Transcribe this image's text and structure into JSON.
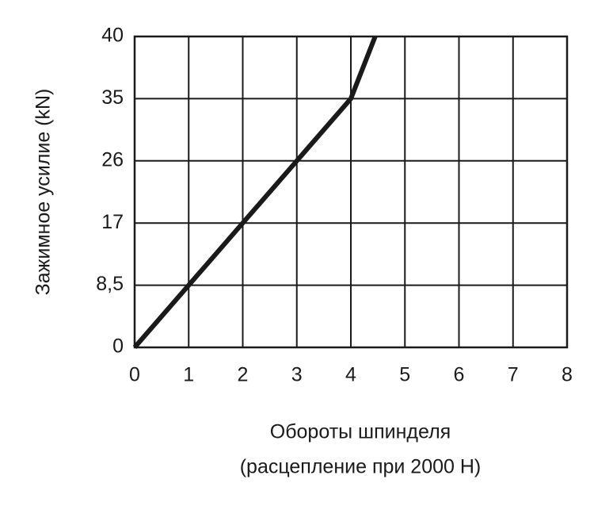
{
  "chart_data": {
    "type": "line",
    "ylabel": "Зажимное усилие (kN)",
    "xlabel": [
      "Обороты шпинделя",
      "(расцепление при 2000 Н)"
    ],
    "x": [
      0,
      1,
      2,
      3,
      4,
      4.45
    ],
    "series": [
      {
        "color": "#1a1a1a",
        "values": [
          0,
          8.5,
          17,
          26,
          35,
          40
        ]
      }
    ],
    "xlim": [
      0,
      8
    ],
    "xticks": [
      0,
      1,
      2,
      3,
      4,
      5,
      6,
      7,
      8
    ],
    "ylim": [
      0,
      40
    ],
    "yticks": [
      0,
      {
        "value": 8.5,
        "label": "8,5"
      },
      17,
      26,
      35,
      40
    ],
    "grid": true
  }
}
